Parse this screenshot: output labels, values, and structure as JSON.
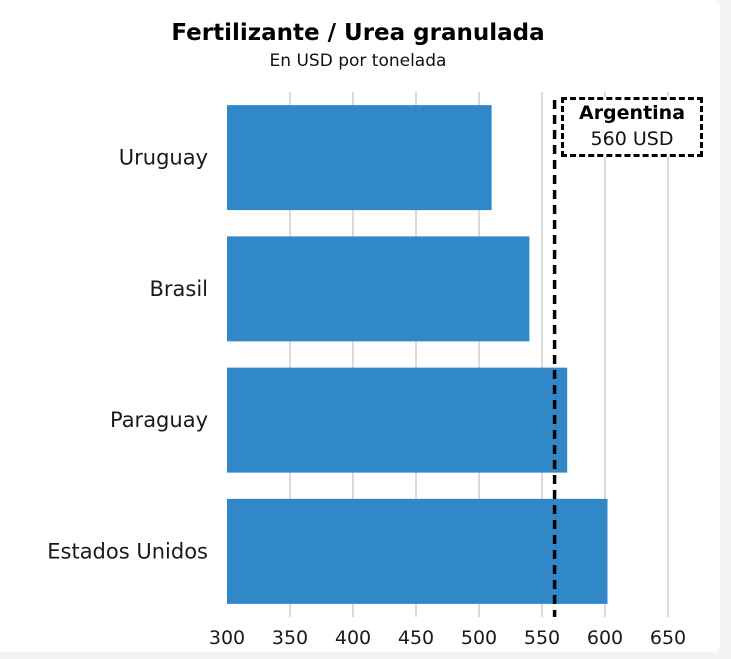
{
  "chart_data": {
    "type": "bar",
    "orientation": "horizontal",
    "title": "Fertilizante / Urea granulada",
    "subtitle": "En USD por tonelada",
    "categories": [
      "Uruguay",
      "Brasil",
      "Paraguay",
      "Estados Unidos"
    ],
    "values": [
      510,
      540,
      570,
      602
    ],
    "xlim": [
      300,
      650
    ],
    "x_ticks": [
      300,
      350,
      400,
      450,
      500,
      550,
      600,
      650
    ],
    "grid": "vertical",
    "bar_color": "#3188c9",
    "reference_line": {
      "value": 560,
      "label": "Argentina",
      "value_label": "560 USD",
      "style": "dashed",
      "color": "#000000"
    }
  }
}
